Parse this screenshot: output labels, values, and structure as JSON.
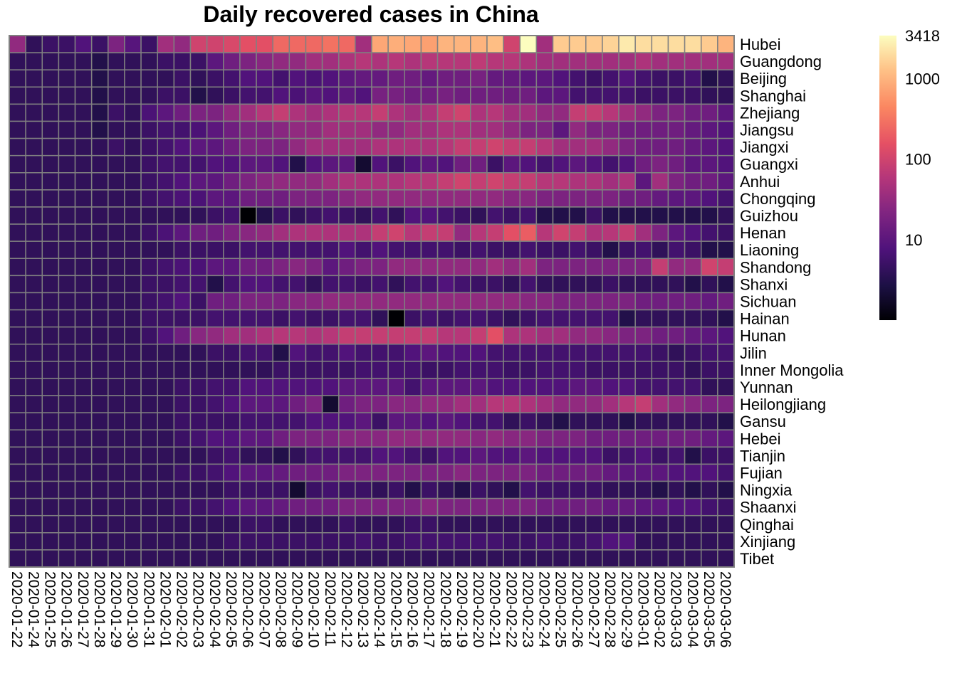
{
  "chart_data": {
    "type": "heatmap",
    "title": "Daily recovered cases in China",
    "xlabel": "",
    "ylabel": "",
    "legend": "right",
    "scale": "log",
    "colorbar": {
      "ticks": [
        "10",
        "100",
        "1000",
        "3418"
      ],
      "values": [
        10,
        100,
        1000,
        3418
      ],
      "min": 1,
      "max": 3418,
      "colormap": "magma"
    },
    "x": [
      "2020-01-22",
      "2020-01-24",
      "2020-01-25",
      "2020-01-26",
      "2020-01-27",
      "2020-01-28",
      "2020-01-29",
      "2020-01-30",
      "2020-01-31",
      "2020-02-01",
      "2020-02-02",
      "2020-02-03",
      "2020-02-04",
      "2020-02-05",
      "2020-02-06",
      "2020-02-07",
      "2020-02-08",
      "2020-02-09",
      "2020-02-10",
      "2020-02-11",
      "2020-02-12",
      "2020-02-13",
      "2020-02-14",
      "2020-02-15",
      "2020-02-16",
      "2020-02-17",
      "2020-02-18",
      "2020-02-19",
      "2020-02-20",
      "2020-02-21",
      "2020-02-22",
      "2020-02-23",
      "2020-02-24",
      "2020-02-25",
      "2020-02-26",
      "2020-02-27",
      "2020-02-28",
      "2020-02-29",
      "2020-03-01",
      "2020-03-02",
      "2020-03-03",
      "2020-03-04",
      "2020-03-05",
      "2020-03-06"
    ],
    "y": [
      "Hubei",
      "Guangdong",
      "Beijing",
      "Shanghai",
      "Zhejiang",
      "Jiangsu",
      "Jiangxi",
      "Guangxi",
      "Anhui",
      "Chongqing",
      "Guizhou",
      "Henan",
      "Liaoning",
      "Shandong",
      "Shanxi",
      "Sichuan",
      "Hainan",
      "Hunan",
      "Jilin",
      "Inner Mongolia",
      "Yunnan",
      "Heilongjiang",
      "Gansu",
      "Hebei",
      "Tianjin",
      "Fujian",
      "Ningxia",
      "Shaanxi",
      "Qinghai",
      "Xinjiang",
      "Tibet"
    ],
    "values": [
      [
        30,
        4,
        5,
        5,
        8,
        5,
        20,
        9,
        5,
        40,
        30,
        100,
        100,
        120,
        150,
        150,
        250,
        250,
        250,
        300,
        250,
        40,
        800,
        900,
        800,
        700,
        1000,
        1000,
        1000,
        1200,
        100,
        3418,
        40,
        1500,
        1500,
        1500,
        1700,
        2500,
        2000,
        2000,
        2000,
        2000,
        1500,
        1000
      ],
      [
        4,
        4,
        4,
        4,
        4,
        3,
        4,
        4,
        4,
        5,
        5,
        5,
        10,
        15,
        20,
        25,
        30,
        30,
        40,
        40,
        50,
        60,
        50,
        60,
        50,
        60,
        60,
        60,
        70,
        60,
        60,
        50,
        40,
        40,
        40,
        40,
        40,
        40,
        50,
        40,
        40,
        40,
        40,
        40
      ],
      [
        4,
        4,
        4,
        4,
        4,
        3,
        4,
        4,
        4,
        4,
        5,
        4,
        5,
        6,
        8,
        8,
        6,
        8,
        7,
        8,
        10,
        12,
        12,
        15,
        15,
        12,
        15,
        15,
        18,
        12,
        12,
        10,
        10,
        8,
        6,
        5,
        6,
        8,
        6,
        5,
        5,
        6,
        3,
        4
      ],
      [
        4,
        4,
        4,
        4,
        4,
        3,
        4,
        4,
        4,
        5,
        5,
        3,
        4,
        5,
        6,
        6,
        8,
        7,
        9,
        8,
        10,
        8,
        18,
        18,
        15,
        15,
        18,
        15,
        15,
        15,
        14,
        15,
        10,
        10,
        6,
        6,
        6,
        6,
        5,
        5,
        5,
        5,
        4,
        4
      ],
      [
        4,
        4,
        4,
        4,
        4,
        3,
        5,
        4,
        7,
        10,
        15,
        20,
        20,
        30,
        40,
        60,
        80,
        50,
        40,
        50,
        60,
        60,
        80,
        50,
        40,
        50,
        80,
        100,
        50,
        60,
        40,
        40,
        30,
        30,
        80,
        80,
        60,
        40,
        30,
        20,
        20,
        15,
        15,
        10
      ],
      [
        4,
        4,
        4,
        4,
        4,
        3,
        4,
        4,
        5,
        6,
        6,
        7,
        10,
        15,
        20,
        20,
        25,
        30,
        30,
        40,
        40,
        40,
        30,
        30,
        40,
        40,
        50,
        50,
        40,
        40,
        30,
        20,
        20,
        10,
        30,
        20,
        20,
        15,
        15,
        15,
        15,
        12,
        10,
        8
      ],
      [
        4,
        4,
        4,
        4,
        4,
        4,
        5,
        4,
        5,
        6,
        8,
        10,
        10,
        15,
        20,
        20,
        20,
        30,
        40,
        40,
        40,
        40,
        50,
        50,
        50,
        50,
        60,
        80,
        80,
        100,
        80,
        80,
        60,
        40,
        40,
        40,
        30,
        20,
        15,
        15,
        15,
        12,
        10,
        8
      ],
      [
        4,
        4,
        4,
        4,
        4,
        4,
        4,
        4,
        5,
        6,
        6,
        6,
        8,
        8,
        10,
        10,
        8,
        3,
        8,
        10,
        10,
        2,
        8,
        5,
        8,
        10,
        8,
        15,
        15,
        5,
        10,
        8,
        6,
        8,
        10,
        8,
        6,
        8,
        15,
        20,
        15,
        10,
        10,
        8
      ],
      [
        4,
        4,
        4,
        4,
        4,
        4,
        4,
        4,
        5,
        6,
        8,
        10,
        10,
        15,
        20,
        25,
        30,
        30,
        30,
        40,
        50,
        50,
        50,
        50,
        60,
        60,
        80,
        100,
        80,
        100,
        80,
        80,
        60,
        60,
        50,
        50,
        40,
        50,
        10,
        40,
        20,
        15,
        15,
        10
      ],
      [
        4,
        4,
        4,
        4,
        4,
        4,
        4,
        4,
        5,
        6,
        7,
        7,
        10,
        10,
        15,
        15,
        15,
        20,
        20,
        20,
        25,
        30,
        30,
        30,
        30,
        30,
        30,
        30,
        30,
        30,
        25,
        25,
        20,
        20,
        20,
        20,
        20,
        15,
        15,
        12,
        10,
        10,
        8,
        6
      ],
      [
        4,
        4,
        4,
        4,
        4,
        4,
        4,
        4,
        4,
        4,
        4,
        4,
        5,
        6,
        1,
        3,
        5,
        4,
        5,
        6,
        5,
        4,
        6,
        4,
        8,
        8,
        6,
        5,
        4,
        6,
        5,
        6,
        3,
        3,
        3,
        5,
        3,
        3,
        3,
        3,
        3,
        3,
        3,
        4
      ],
      [
        4,
        4,
        4,
        4,
        4,
        4,
        4,
        4,
        5,
        7,
        10,
        15,
        15,
        20,
        25,
        30,
        40,
        50,
        50,
        50,
        50,
        50,
        80,
        100,
        60,
        80,
        80,
        30,
        60,
        80,
        150,
        200,
        60,
        100,
        80,
        50,
        60,
        80,
        40,
        20,
        10,
        8,
        6,
        5
      ],
      [
        4,
        4,
        4,
        4,
        4,
        4,
        4,
        4,
        4,
        4,
        5,
        5,
        5,
        5,
        6,
        6,
        6,
        6,
        6,
        6,
        8,
        6,
        8,
        6,
        6,
        6,
        6,
        5,
        6,
        5,
        5,
        6,
        5,
        5,
        6,
        5,
        3,
        5,
        6,
        4,
        6,
        5,
        3,
        3
      ],
      [
        4,
        4,
        4,
        4,
        4,
        4,
        4,
        4,
        5,
        6,
        7,
        7,
        10,
        10,
        15,
        15,
        20,
        25,
        20,
        10,
        15,
        20,
        20,
        30,
        30,
        30,
        30,
        30,
        30,
        40,
        30,
        40,
        20,
        20,
        20,
        20,
        20,
        20,
        20,
        80,
        30,
        30,
        100,
        80
      ],
      [
        4,
        4,
        4,
        4,
        4,
        4,
        4,
        4,
        5,
        5,
        6,
        6,
        3,
        6,
        8,
        8,
        6,
        6,
        4,
        6,
        6,
        5,
        6,
        4,
        6,
        6,
        8,
        6,
        5,
        5,
        4,
        6,
        4,
        4,
        4,
        4,
        5,
        4,
        4,
        4,
        4,
        3,
        4,
        3
      ],
      [
        4,
        4,
        4,
        4,
        4,
        4,
        4,
        4,
        5,
        6,
        8,
        5,
        15,
        15,
        20,
        20,
        20,
        25,
        25,
        30,
        30,
        30,
        30,
        30,
        30,
        30,
        30,
        30,
        30,
        30,
        30,
        25,
        25,
        20,
        20,
        20,
        20,
        20,
        15,
        15,
        15,
        15,
        12,
        15
      ],
      [
        4,
        4,
        4,
        4,
        4,
        4,
        4,
        4,
        5,
        5,
        5,
        5,
        6,
        6,
        6,
        6,
        5,
        6,
        5,
        5,
        6,
        6,
        4,
        1,
        5,
        6,
        5,
        6,
        6,
        5,
        4,
        5,
        6,
        6,
        6,
        6,
        6,
        3,
        4,
        4,
        4,
        4,
        4,
        3
      ],
      [
        4,
        4,
        4,
        4,
        4,
        4,
        4,
        4,
        5,
        8,
        15,
        25,
        30,
        40,
        40,
        50,
        60,
        60,
        50,
        60,
        80,
        80,
        80,
        80,
        80,
        80,
        60,
        60,
        80,
        150,
        50,
        50,
        40,
        40,
        30,
        30,
        25,
        20,
        20,
        15,
        15,
        12,
        10,
        8
      ],
      [
        4,
        4,
        4,
        4,
        4,
        4,
        4,
        4,
        4,
        4,
        4,
        4,
        5,
        5,
        6,
        6,
        3,
        8,
        6,
        6,
        8,
        6,
        6,
        6,
        8,
        10,
        8,
        8,
        8,
        6,
        6,
        6,
        6,
        6,
        6,
        6,
        6,
        6,
        6,
        5,
        4,
        5,
        6,
        6
      ],
      [
        4,
        4,
        4,
        4,
        4,
        4,
        4,
        4,
        4,
        4,
        4,
        4,
        4,
        4,
        4,
        4,
        5,
        5,
        5,
        5,
        5,
        6,
        6,
        6,
        6,
        5,
        5,
        6,
        6,
        6,
        5,
        5,
        6,
        6,
        6,
        5,
        5,
        5,
        5,
        5,
        5,
        4,
        5,
        5
      ],
      [
        4,
        4,
        4,
        4,
        4,
        4,
        4,
        4,
        4,
        4,
        5,
        5,
        6,
        6,
        8,
        8,
        8,
        8,
        8,
        8,
        10,
        10,
        10,
        10,
        6,
        10,
        10,
        10,
        10,
        8,
        8,
        8,
        8,
        8,
        10,
        10,
        8,
        8,
        6,
        6,
        6,
        6,
        4,
        4
      ],
      [
        4,
        4,
        4,
        4,
        4,
        4,
        4,
        4,
        4,
        4,
        5,
        5,
        6,
        8,
        10,
        10,
        10,
        15,
        20,
        2,
        15,
        20,
        20,
        25,
        25,
        30,
        30,
        40,
        40,
        60,
        60,
        50,
        40,
        30,
        30,
        30,
        40,
        60,
        80,
        40,
        30,
        25,
        20,
        20
      ],
      [
        4,
        4,
        4,
        4,
        4,
        4,
        4,
        4,
        4,
        4,
        5,
        5,
        5,
        5,
        6,
        6,
        6,
        6,
        8,
        8,
        8,
        10,
        5,
        10,
        10,
        8,
        10,
        8,
        6,
        6,
        4,
        5,
        4,
        3,
        4,
        4,
        4,
        3,
        4,
        4,
        4,
        4,
        4,
        3
      ],
      [
        4,
        4,
        4,
        4,
        4,
        4,
        4,
        4,
        4,
        4,
        5,
        6,
        8,
        8,
        10,
        10,
        15,
        20,
        20,
        20,
        25,
        25,
        25,
        30,
        30,
        30,
        30,
        30,
        25,
        30,
        25,
        25,
        20,
        20,
        20,
        15,
        15,
        15,
        15,
        15,
        15,
        15,
        12,
        10
      ],
      [
        4,
        4,
        4,
        4,
        4,
        4,
        4,
        4,
        4,
        4,
        4,
        4,
        5,
        6,
        4,
        4,
        3,
        4,
        6,
        6,
        6,
        6,
        8,
        8,
        6,
        5,
        8,
        8,
        10,
        8,
        8,
        10,
        8,
        8,
        8,
        8,
        5,
        6,
        8,
        5,
        6,
        3,
        5,
        5
      ],
      [
        4,
        4,
        4,
        4,
        4,
        4,
        4,
        4,
        4,
        4,
        5,
        5,
        6,
        8,
        10,
        10,
        12,
        15,
        15,
        15,
        20,
        20,
        20,
        20,
        20,
        20,
        20,
        25,
        20,
        20,
        20,
        20,
        15,
        15,
        15,
        15,
        12,
        10,
        10,
        10,
        8,
        8,
        8,
        6
      ],
      [
        4,
        4,
        4,
        4,
        4,
        4,
        4,
        4,
        4,
        4,
        4,
        4,
        4,
        5,
        5,
        5,
        5,
        2,
        5,
        6,
        5,
        5,
        4,
        5,
        3,
        5,
        4,
        3,
        5,
        4,
        3,
        6,
        5,
        5,
        5,
        5,
        4,
        4,
        4,
        3,
        4,
        3,
        4,
        3
      ],
      [
        4,
        4,
        4,
        4,
        4,
        4,
        4,
        4,
        4,
        4,
        5,
        5,
        6,
        8,
        10,
        10,
        12,
        15,
        15,
        15,
        20,
        20,
        20,
        20,
        20,
        25,
        20,
        20,
        20,
        20,
        20,
        20,
        15,
        15,
        15,
        15,
        12,
        12,
        10,
        10,
        8,
        8,
        6,
        5
      ],
      [
        4,
        4,
        4,
        4,
        4,
        4,
        4,
        4,
        4,
        4,
        4,
        4,
        4,
        4,
        5,
        5,
        4,
        4,
        4,
        4,
        5,
        4,
        4,
        4,
        5,
        5,
        4,
        4,
        4,
        4,
        4,
        4,
        4,
        4,
        4,
        4,
        4,
        4,
        4,
        4,
        4,
        4,
        4,
        4
      ],
      [
        4,
        4,
        4,
        4,
        4,
        4,
        4,
        4,
        4,
        4,
        4,
        4,
        4,
        5,
        5,
        5,
        5,
        5,
        5,
        5,
        5,
        6,
        5,
        5,
        6,
        6,
        6,
        6,
        6,
        6,
        5,
        5,
        6,
        5,
        5,
        6,
        8,
        8,
        4,
        4,
        4,
        4,
        4,
        4
      ],
      [
        4,
        4,
        4,
        4,
        4,
        4,
        4,
        4,
        4,
        4,
        4,
        4,
        4,
        4,
        4,
        4,
        4,
        4,
        4,
        4,
        4,
        4,
        4,
        4,
        4,
        4,
        4,
        4,
        4,
        4,
        4,
        4,
        4,
        4,
        4,
        4,
        4,
        4,
        4,
        4,
        4,
        4,
        4,
        4
      ]
    ]
  }
}
